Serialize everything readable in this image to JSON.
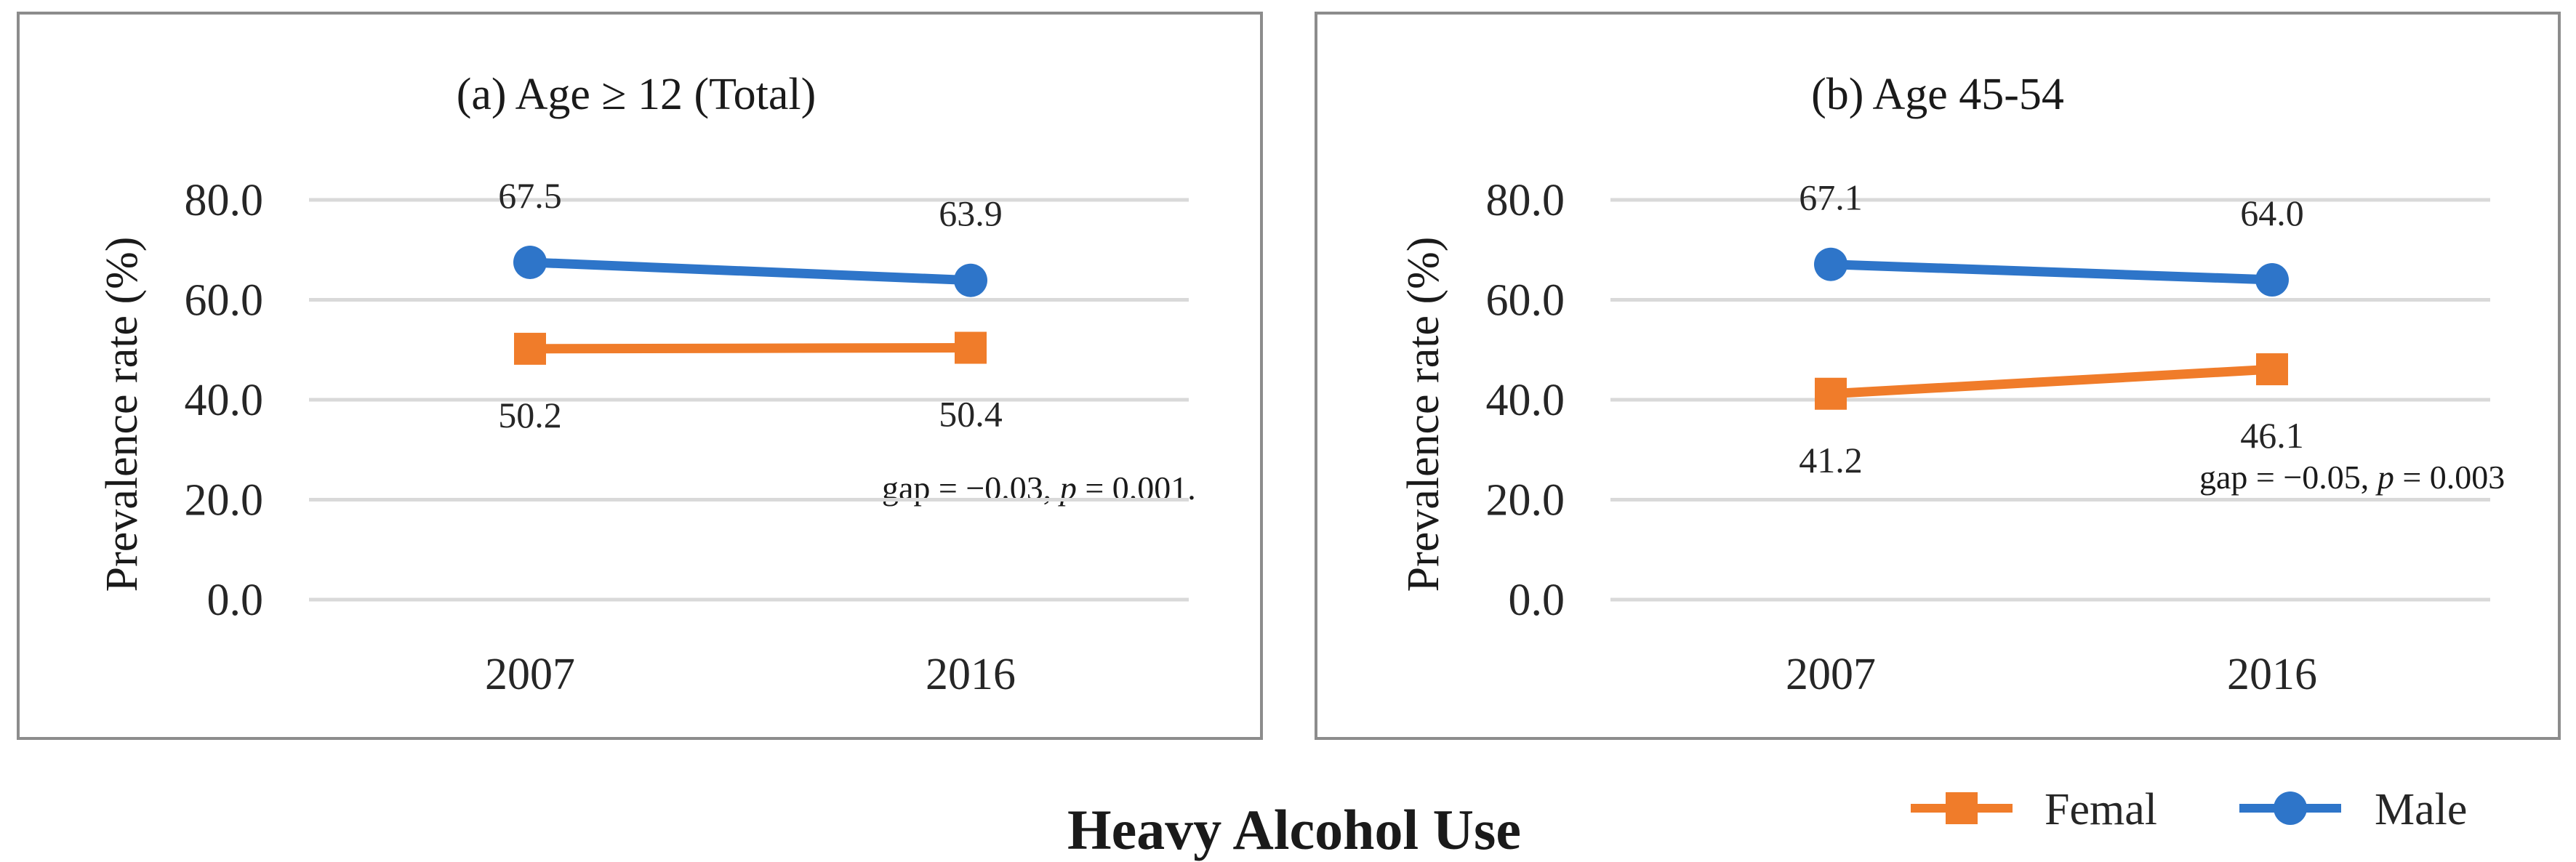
{
  "figure": {
    "title": "Heavy Alcohol Use"
  },
  "legend": {
    "items": [
      {
        "name": "Femal",
        "color": "#f07c2a",
        "marker": "square"
      },
      {
        "name": "Male",
        "color": "#2e75c9",
        "marker": "circle"
      }
    ]
  },
  "chart_data": [
    {
      "type": "line",
      "title": "(a) Age ≥ 12 (Total)",
      "ylabel": "Prevalence rate (%)",
      "xlabel": "",
      "categories": [
        "2007",
        "2016"
      ],
      "ylim": [
        0,
        80
      ],
      "yticks": [
        "0.0",
        "20.0",
        "40.0",
        "60.0",
        "80.0"
      ],
      "grid": true,
      "series": [
        {
          "name": "Male",
          "values": [
            67.5,
            63.9
          ],
          "labels": [
            "67.5",
            "63.9"
          ],
          "color": "#2e75c9",
          "marker": "circle"
        },
        {
          "name": "Femal",
          "values": [
            50.2,
            50.4
          ],
          "labels": [
            "50.2",
            "50.4"
          ],
          "color": "#f07c2a",
          "marker": "square"
        }
      ],
      "annotation": {
        "pre": "gap = −0.03, ",
        "p": "p",
        "post": " = 0.001."
      }
    },
    {
      "type": "line",
      "title": "(b) Age 45-54",
      "ylabel": "Prevalence rate (%)",
      "xlabel": "",
      "categories": [
        "2007",
        "2016"
      ],
      "ylim": [
        0,
        80
      ],
      "yticks": [
        "0.0",
        "20.0",
        "40.0",
        "60.0",
        "80.0"
      ],
      "grid": true,
      "series": [
        {
          "name": "Male",
          "values": [
            67.1,
            64.0
          ],
          "labels": [
            "67.1",
            "64.0"
          ],
          "color": "#2e75c9",
          "marker": "circle"
        },
        {
          "name": "Femal",
          "values": [
            41.2,
            46.1
          ],
          "labels": [
            "41.2",
            "46.1"
          ],
          "color": "#f07c2a",
          "marker": "square"
        }
      ],
      "annotation": {
        "pre": "gap = −0.05, ",
        "p": "p",
        "post": " = 0.003"
      }
    }
  ]
}
